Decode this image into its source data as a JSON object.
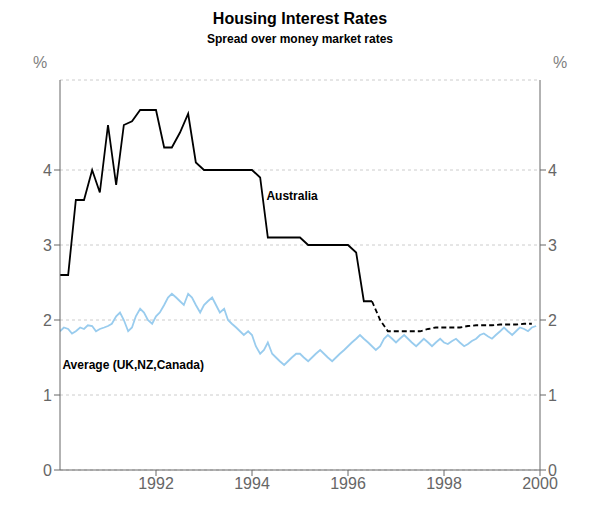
{
  "chart_data": {
    "type": "line",
    "title": "Housing Interest Rates",
    "subtitle": "Spread over money market rates",
    "ylabel": "%",
    "y2label": "%",
    "xlim": [
      1990.0,
      2000.0
    ],
    "xticks": [
      1992,
      1994,
      1996,
      1998,
      2000
    ],
    "ylim": [
      0,
      5.2
    ],
    "yticks": [
      0,
      1,
      2,
      3,
      4
    ],
    "y2lim": [
      0,
      5.2
    ],
    "y2ticks": [
      0,
      1,
      2,
      3,
      4
    ],
    "grid": "y",
    "series": [
      {
        "color": "#000000",
        "line_style": "solid",
        "x": [
          1990.0,
          1990.17,
          1990.33,
          1990.5,
          1990.67,
          1990.83,
          1991.0,
          1991.17,
          1991.33,
          1991.5,
          1991.67,
          1991.83,
          1992.0,
          1992.17,
          1992.33,
          1992.5,
          1992.67,
          1992.83,
          1993.0,
          1993.17,
          1993.33,
          1993.5,
          1993.67,
          1993.83,
          1994.0,
          1994.17,
          1994.33,
          1994.5,
          1995.0,
          1995.17,
          1995.5,
          1995.83,
          1996.0,
          1996.17,
          1996.33,
          1996.5
        ],
        "values": [
          2.6,
          2.6,
          3.6,
          3.6,
          4.0,
          3.7,
          4.6,
          3.8,
          4.6,
          4.65,
          4.8,
          4.8,
          4.8,
          4.3,
          4.3,
          4.5,
          4.75,
          4.1,
          4.0,
          4.0,
          4.0,
          4.0,
          4.0,
          4.0,
          4.0,
          3.9,
          3.1,
          3.1,
          3.1,
          3.0,
          3.0,
          3.0,
          3.0,
          2.9,
          2.25,
          2.25
        ]
      },
      {
        "color": "#000000",
        "line_style": "dashed",
        "x": [
          1996.5,
          1996.67,
          1996.83,
          1997.0,
          1997.17,
          1997.33,
          1997.5,
          1997.67,
          1997.83,
          1998.0,
          1998.17,
          1998.33,
          1998.5,
          1998.67,
          1998.83,
          1999.0,
          1999.17,
          1999.33,
          1999.5,
          1999.67,
          1999.83
        ],
        "values": [
          2.25,
          2.0,
          1.85,
          1.85,
          1.85,
          1.85,
          1.85,
          1.88,
          1.9,
          1.9,
          1.9,
          1.9,
          1.92,
          1.93,
          1.93,
          1.93,
          1.94,
          1.94,
          1.94,
          1.95,
          1.95
        ]
      },
      {
        "color": "#99ccee",
        "line_style": "solid",
        "x": [
          1990.0,
          1990.08,
          1990.17,
          1990.25,
          1990.33,
          1990.42,
          1990.5,
          1990.58,
          1990.67,
          1990.75,
          1990.83,
          1990.92,
          1991.0,
          1991.08,
          1991.17,
          1991.25,
          1991.33,
          1991.42,
          1991.5,
          1991.58,
          1991.67,
          1991.75,
          1991.83,
          1991.92,
          1992.0,
          1992.08,
          1992.17,
          1992.25,
          1992.33,
          1992.42,
          1992.5,
          1992.58,
          1992.67,
          1992.75,
          1992.83,
          1992.92,
          1993.0,
          1993.08,
          1993.17,
          1993.25,
          1993.33,
          1993.42,
          1993.5,
          1993.58,
          1993.67,
          1993.75,
          1993.83,
          1993.92,
          1994.0,
          1994.08,
          1994.17,
          1994.25,
          1994.33,
          1994.42,
          1994.5,
          1994.58,
          1994.67,
          1994.75,
          1994.83,
          1994.92,
          1995.0,
          1995.08,
          1995.17,
          1995.25,
          1995.33,
          1995.42,
          1995.5,
          1995.58,
          1995.67,
          1995.75,
          1995.83,
          1995.92,
          1996.0,
          1996.08,
          1996.17,
          1996.25,
          1996.33,
          1996.42,
          1996.5,
          1996.58,
          1996.67,
          1996.75,
          1996.83,
          1996.92,
          1997.0,
          1997.08,
          1997.17,
          1997.25,
          1997.33,
          1997.42,
          1997.5,
          1997.58,
          1997.67,
          1997.75,
          1997.83,
          1997.92,
          1998.0,
          1998.08,
          1998.17,
          1998.25,
          1998.33,
          1998.42,
          1998.5,
          1998.58,
          1998.67,
          1998.75,
          1998.83,
          1998.92,
          1999.0,
          1999.08,
          1999.17,
          1999.25,
          1999.33,
          1999.42,
          1999.5,
          1999.58,
          1999.67,
          1999.75,
          1999.83,
          1999.92
        ],
        "values": [
          1.85,
          1.9,
          1.88,
          1.82,
          1.85,
          1.9,
          1.88,
          1.93,
          1.92,
          1.85,
          1.88,
          1.9,
          1.92,
          1.95,
          2.05,
          2.1,
          2.0,
          1.85,
          1.9,
          2.05,
          2.15,
          2.1,
          2.0,
          1.95,
          2.05,
          2.1,
          2.2,
          2.3,
          2.35,
          2.3,
          2.25,
          2.2,
          2.35,
          2.3,
          2.2,
          2.1,
          2.2,
          2.25,
          2.3,
          2.2,
          2.1,
          2.15,
          2.0,
          1.95,
          1.9,
          1.85,
          1.8,
          1.85,
          1.8,
          1.65,
          1.55,
          1.6,
          1.7,
          1.55,
          1.5,
          1.45,
          1.4,
          1.45,
          1.5,
          1.55,
          1.55,
          1.5,
          1.45,
          1.5,
          1.55,
          1.6,
          1.55,
          1.5,
          1.45,
          1.5,
          1.55,
          1.6,
          1.65,
          1.7,
          1.75,
          1.8,
          1.75,
          1.7,
          1.65,
          1.6,
          1.65,
          1.75,
          1.8,
          1.75,
          1.7,
          1.75,
          1.8,
          1.75,
          1.7,
          1.65,
          1.7,
          1.75,
          1.7,
          1.65,
          1.7,
          1.75,
          1.7,
          1.68,
          1.72,
          1.75,
          1.7,
          1.65,
          1.68,
          1.72,
          1.75,
          1.8,
          1.82,
          1.78,
          1.75,
          1.8,
          1.85,
          1.9,
          1.85,
          1.8,
          1.85,
          1.9,
          1.88,
          1.85,
          1.9,
          1.92
        ]
      }
    ],
    "annotations": [
      {
        "text": "Australia",
        "x": 1994.3,
        "y": 3.6
      },
      {
        "text": "Average (UK,NZ,Canada)",
        "x": 1990.05,
        "y": 1.35
      }
    ]
  }
}
